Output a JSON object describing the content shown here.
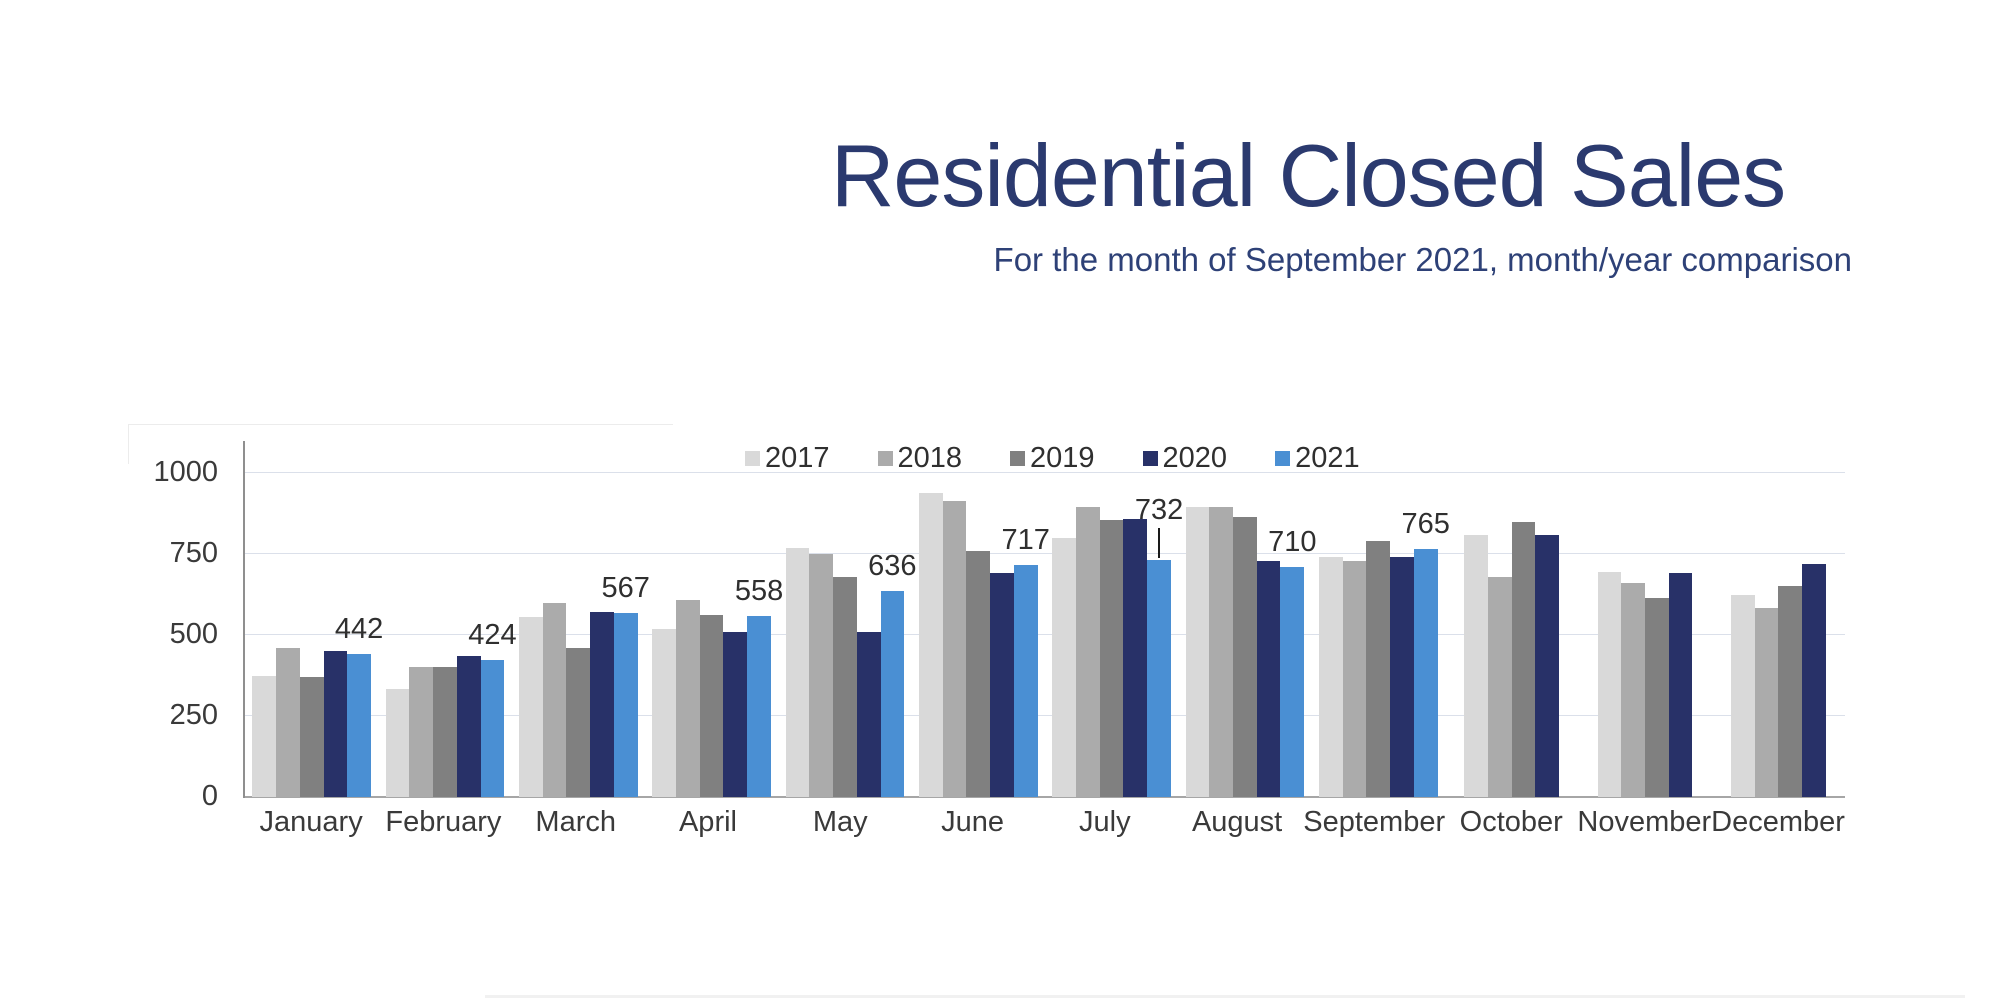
{
  "page": {
    "title": "Residential Closed Sales",
    "subtitle": "For the month of September 2021, month/year comparison"
  },
  "theme": {
    "title_color": "#2b3a6f",
    "subtitle_color": "#2e4177",
    "axis_line_color": "#a6a6a6",
    "gridline_color": "#dbe0ea",
    "label_color": "#3a3a3a"
  },
  "chart_data": {
    "type": "bar",
    "title": "Residential Closed Sales",
    "subtitle": "For the month of September 2021, month/year comparison",
    "categories": [
      "January",
      "February",
      "March",
      "April",
      "May",
      "June",
      "July",
      "August",
      "September",
      "October",
      "November",
      "December"
    ],
    "series": [
      {
        "name": "2017",
        "color": "#D9D9D9",
        "values": [
          375,
          335,
          555,
          520,
          770,
          938,
          800,
          895,
          740,
          810,
          695,
          625
        ]
      },
      {
        "name": "2018",
        "color": "#ABABAB",
        "values": [
          460,
          400,
          600,
          608,
          750,
          915,
          895,
          895,
          730,
          680,
          660,
          585
        ]
      },
      {
        "name": "2019",
        "color": "#808080",
        "values": [
          370,
          400,
          460,
          562,
          680,
          760,
          855,
          865,
          790,
          848,
          615,
          650
        ]
      },
      {
        "name": "2020",
        "color": "#283168",
        "values": [
          450,
          435,
          572,
          510,
          510,
          690,
          858,
          728,
          740,
          810,
          690,
          720
        ]
      },
      {
        "name": "2021",
        "color": "#4A8FD3",
        "values": [
          442,
          424,
          567,
          558,
          636,
          717,
          732,
          710,
          765,
          null,
          null,
          null
        ]
      }
    ],
    "data_labels": {
      "series": "2021",
      "values": [
        "442",
        "424",
        "567",
        "558",
        "636",
        "717",
        "732",
        "710",
        "765"
      ],
      "leader_line_month": "July"
    },
    "y_axis": {
      "ticks": [
        0,
        250,
        500,
        750,
        1000
      ],
      "max": 1000,
      "tick_labels": [
        "0",
        "250",
        "500",
        "750",
        "1000"
      ]
    },
    "legend": {
      "position": "top",
      "entries": [
        "2017",
        "2018",
        "2019",
        "2020",
        "2021"
      ]
    },
    "grid": "horizontal",
    "ylim": [
      0,
      1000
    ]
  }
}
